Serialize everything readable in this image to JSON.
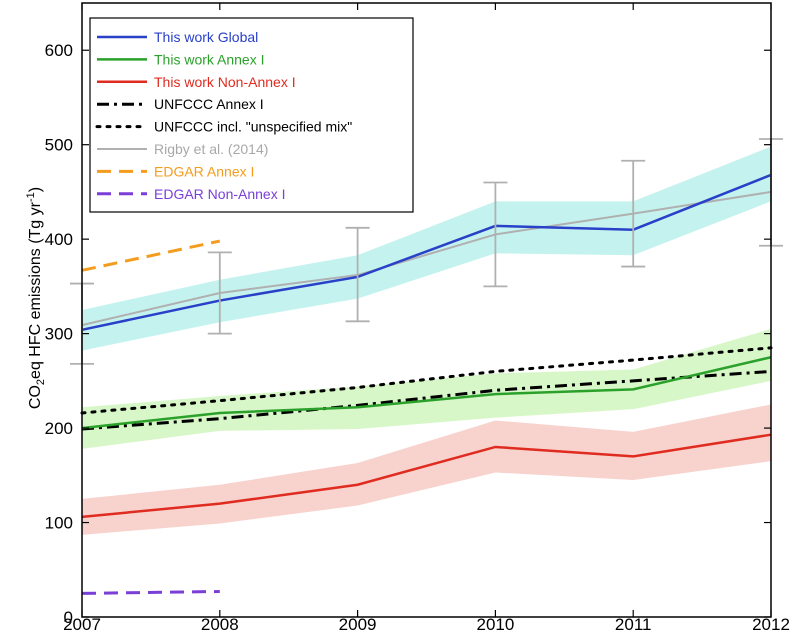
{
  "chart_data": {
    "type": "line",
    "title": "",
    "xlabel": "",
    "ylabel_parts": {
      "pre": "CO",
      "sub": "2",
      "mid": "eq HFC emissions (Tg yr",
      "sup": "-1",
      "post": ")"
    },
    "xlim": [
      2007,
      2012
    ],
    "ylim": [
      0,
      650
    ],
    "x_ticks": [
      "2007",
      "2008",
      "2009",
      "2010",
      "2011",
      "2012"
    ],
    "y_ticks": [
      "0",
      "100",
      "200",
      "300",
      "400",
      "500",
      "600"
    ],
    "legend_position": "top-left",
    "bands": [
      {
        "name": "This work Global uncertainty",
        "color": "#c4f3ef",
        "x": [
          2007,
          2008,
          2009,
          2010,
          2011,
          2012
        ],
        "lower": [
          282,
          312,
          337,
          385,
          383,
          440
        ],
        "upper": [
          325,
          357,
          383,
          440,
          440,
          498
        ]
      },
      {
        "name": "This work Annex I uncertainty",
        "color": "#d8f7c8",
        "x": [
          2007,
          2008,
          2009,
          2010,
          2011,
          2012
        ],
        "lower": [
          178,
          197,
          199,
          211,
          220,
          250
        ],
        "upper": [
          222,
          234,
          244,
          258,
          262,
          305
        ]
      },
      {
        "name": "This work Non-Annex I uncertainty",
        "color": "#f8d2cc",
        "x": [
          2007,
          2008,
          2009,
          2010,
          2011,
          2012
        ],
        "lower": [
          87,
          99,
          118,
          153,
          145,
          165
        ],
        "upper": [
          125,
          140,
          163,
          208,
          196,
          225
        ]
      }
    ],
    "series": [
      {
        "name": "This work Global",
        "color": "#2940c8",
        "dash": "solid",
        "width": 2.5,
        "x": [
          2007,
          2008,
          2009,
          2010,
          2011,
          2012
        ],
        "values": [
          304,
          335,
          360,
          414,
          410,
          468
        ]
      },
      {
        "name": "This work Annex I",
        "color": "#2ba12b",
        "dash": "solid",
        "width": 2.5,
        "x": [
          2007,
          2008,
          2009,
          2010,
          2011,
          2012
        ],
        "values": [
          200,
          216,
          222,
          236,
          241,
          275
        ]
      },
      {
        "name": "This work Non-Annex I",
        "color": "#e02b20",
        "dash": "solid",
        "width": 2.5,
        "x": [
          2007,
          2008,
          2009,
          2010,
          2011,
          2012
        ],
        "values": [
          106,
          120,
          140,
          180,
          170,
          193
        ]
      },
      {
        "name": "UNFCCC Annex I",
        "color": "#000000",
        "dash": "dashdot",
        "width": 3,
        "x": [
          2007,
          2008,
          2009,
          2010,
          2011,
          2012
        ],
        "values": [
          199,
          210,
          224,
          240,
          250,
          260
        ]
      },
      {
        "name": "UNFCCC incl. \"unspecified mix\"",
        "color": "#000000",
        "dash": "dotted",
        "width": 3,
        "x": [
          2007,
          2008,
          2009,
          2010,
          2011,
          2012
        ],
        "values": [
          216,
          229,
          243,
          260,
          272,
          285
        ]
      },
      {
        "name": "Rigby et al. (2014)",
        "color": "#b0b0b0",
        "dash": "solid",
        "width": 2,
        "x": [
          2007,
          2008,
          2009,
          2010,
          2011,
          2012
        ],
        "values": [
          309,
          343,
          362,
          405,
          427,
          450
        ],
        "err_low": [
          268,
          300,
          313,
          350,
          371,
          393
        ],
        "err_high": [
          353,
          386,
          412,
          460,
          483,
          506
        ]
      },
      {
        "name": "EDGAR Annex I",
        "color": "#f39c1d",
        "dash": "dashed",
        "width": 3,
        "x": [
          2007,
          2008
        ],
        "values": [
          367,
          398
        ]
      },
      {
        "name": "EDGAR Non-Annex I",
        "color": "#7b3fd8",
        "dash": "dashed",
        "width": 3,
        "x": [
          2007,
          2008
        ],
        "values": [
          25,
          27
        ]
      }
    ]
  }
}
